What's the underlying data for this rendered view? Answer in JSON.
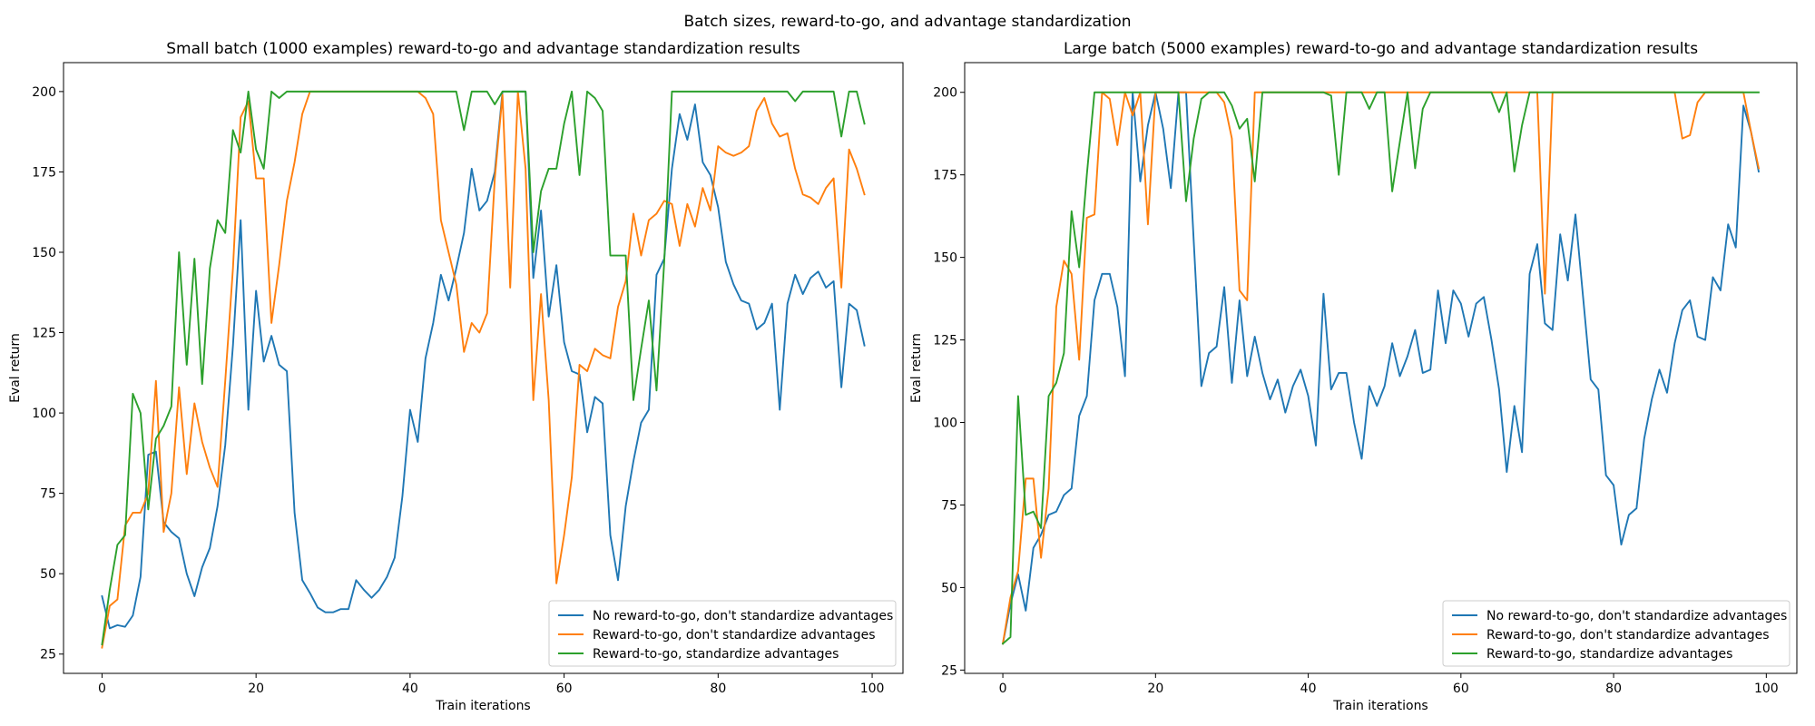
{
  "figure": {
    "suptitle": "Batch sizes, reward-to-go, and advantage standardization"
  },
  "chart_data": [
    {
      "type": "line",
      "title": "Small batch (1000 examples) reward-to-go and advantage standardization results",
      "xlabel": "Train iterations",
      "ylabel": "Eval return",
      "xlim": [
        -5,
        104
      ],
      "ylim": [
        19,
        209
      ],
      "xticks": [
        0,
        20,
        40,
        60,
        80,
        100
      ],
      "yticks": [
        25,
        50,
        75,
        100,
        125,
        150,
        175,
        200
      ],
      "grid": false,
      "legend_position": "lower-right",
      "series": [
        {
          "name": "No reward-to-go, don't standardize advantages",
          "color": "#1f77b4",
          "values": [
            43,
            33,
            34,
            33.5,
            37,
            49,
            87,
            88,
            66,
            63,
            61,
            50,
            43,
            52,
            58,
            71,
            90,
            121,
            160,
            101,
            138,
            116,
            124,
            115,
            113,
            69,
            48,
            44,
            39.5,
            38,
            38,
            39,
            39,
            48,
            45,
            42.5,
            45,
            49,
            55,
            74,
            101,
            91,
            117,
            128,
            143,
            135,
            145,
            156,
            176,
            163,
            166,
            175,
            200,
            200,
            200,
            200,
            142,
            163,
            130,
            146,
            122,
            113,
            112,
            94,
            105,
            103,
            62,
            48,
            71,
            85,
            97,
            101,
            143,
            148,
            176,
            193,
            185,
            196,
            178,
            174,
            164,
            147,
            140,
            135,
            134,
            126,
            128,
            134,
            101,
            134,
            143,
            137,
            142,
            144,
            139,
            141,
            108,
            134,
            132,
            121
          ]
        },
        {
          "name": "Reward-to-go, don't standardize advantages",
          "color": "#ff7f0e",
          "values": [
            27,
            40,
            42,
            65,
            69,
            69,
            75,
            110,
            63,
            75,
            108,
            81,
            103,
            91,
            83,
            77,
            110,
            145,
            192,
            197,
            173,
            173,
            128,
            146,
            166,
            178,
            193,
            200,
            200,
            200,
            200,
            200,
            200,
            200,
            200,
            200,
            200,
            200,
            200,
            200,
            200,
            200,
            198,
            193,
            160,
            150,
            140,
            119,
            128,
            125,
            131,
            173,
            199,
            139,
            200,
            176,
            104,
            137,
            104,
            47,
            62,
            80,
            115,
            113,
            120,
            118,
            117,
            133,
            141,
            162,
            149,
            160,
            162,
            166,
            165,
            152,
            165,
            158,
            170,
            163,
            183,
            181,
            180,
            181,
            183,
            194,
            198,
            190,
            186,
            187,
            176,
            168,
            167,
            165,
            170,
            173,
            139,
            182,
            176,
            168
          ]
        },
        {
          "name": "Reward-to-go, standardize advantages",
          "color": "#2ca02c",
          "values": [
            28,
            45,
            59,
            62,
            106,
            100,
            70,
            92,
            96,
            102,
            150,
            115,
            148,
            109,
            145,
            160,
            156,
            188,
            181,
            200,
            182,
            176,
            200,
            198,
            200,
            200,
            200,
            200,
            200,
            200,
            200,
            200,
            200,
            200,
            200,
            200,
            200,
            200,
            200,
            200,
            200,
            200,
            200,
            200,
            200,
            200,
            200,
            188,
            200,
            200,
            200,
            196,
            200,
            200,
            200,
            200,
            150,
            169,
            176,
            176,
            190,
            200,
            174,
            200,
            198,
            194,
            149,
            149,
            149,
            104,
            120,
            135,
            107,
            147,
            200,
            200,
            200,
            200,
            200,
            200,
            200,
            200,
            200,
            200,
            200,
            200,
            200,
            200,
            200,
            200,
            197,
            200,
            200,
            200,
            200,
            200,
            186,
            200,
            200,
            190
          ]
        }
      ]
    },
    {
      "type": "line",
      "title": "Large batch (5000 examples) reward-to-go and advantage standardization results",
      "xlabel": "Train iterations",
      "ylabel": "Eval return",
      "xlim": [
        -5,
        104
      ],
      "ylim": [
        24,
        209
      ],
      "xticks": [
        0,
        20,
        40,
        60,
        80,
        100
      ],
      "yticks": [
        25,
        50,
        75,
        100,
        125,
        150,
        175,
        200
      ],
      "grid": false,
      "legend_position": "lower-right",
      "series": [
        {
          "name": "No reward-to-go, don't standardize advantages",
          "color": "#1f77b4",
          "values": [
            33,
            45,
            54,
            43,
            62,
            66,
            72,
            73,
            78,
            80,
            102,
            108,
            137,
            145,
            145,
            135,
            114,
            200,
            173,
            190,
            200,
            189,
            171,
            200,
            200,
            155,
            111,
            121,
            123,
            141,
            112,
            137,
            114,
            126,
            115,
            107,
            113,
            103,
            111,
            116,
            108,
            93,
            139,
            110,
            115,
            115,
            100,
            89,
            111,
            105,
            111,
            124,
            114,
            120,
            128,
            115,
            116,
            140,
            124,
            140,
            136,
            126,
            136,
            138,
            125,
            110,
            85,
            105,
            91,
            145,
            154,
            130,
            128,
            157,
            143,
            163,
            138,
            113,
            110,
            84,
            81,
            63,
            72,
            74,
            95,
            107,
            116,
            109,
            124,
            134,
            137,
            126,
            125,
            144,
            140,
            160,
            153,
            196,
            188,
            176
          ]
        },
        {
          "name": "Reward-to-go, don't standardize advantages",
          "color": "#ff7f0e",
          "values": [
            33,
            47,
            55,
            83,
            83,
            59,
            80,
            135,
            149,
            145,
            119,
            162,
            163,
            200,
            198,
            184,
            200,
            193,
            200,
            160,
            200,
            200,
            200,
            200,
            200,
            200,
            200,
            200,
            200,
            197,
            186,
            140,
            137,
            200,
            200,
            200,
            200,
            200,
            200,
            200,
            200,
            200,
            200,
            200,
            200,
            200,
            200,
            200,
            200,
            200,
            200,
            200,
            200,
            200,
            200,
            200,
            200,
            200,
            200,
            200,
            200,
            200,
            200,
            200,
            200,
            200,
            200,
            200,
            200,
            200,
            200,
            139,
            200,
            200,
            200,
            200,
            200,
            200,
            200,
            200,
            200,
            200,
            200,
            200,
            200,
            200,
            200,
            200,
            200,
            186,
            187,
            197,
            200,
            200,
            200,
            200,
            200,
            200,
            188,
            177
          ]
        },
        {
          "name": "Reward-to-go, standardize advantages",
          "color": "#2ca02c",
          "values": [
            33,
            35,
            108,
            72,
            73,
            68,
            108,
            112,
            121,
            164,
            147,
            175,
            200,
            200,
            200,
            200,
            200,
            200,
            200,
            200,
            200,
            200,
            200,
            200,
            167,
            186,
            198,
            200,
            200,
            200,
            196,
            189,
            192,
            173,
            200,
            200,
            200,
            200,
            200,
            200,
            200,
            200,
            200,
            199,
            175,
            200,
            200,
            200,
            195,
            200,
            200,
            170,
            185,
            200,
            177,
            195,
            200,
            200,
            200,
            200,
            200,
            200,
            200,
            200,
            200,
            194,
            200,
            176,
            190,
            200,
            200,
            200,
            200,
            200,
            200,
            200,
            200,
            200,
            200,
            200,
            200,
            200,
            200,
            200,
            200,
            200,
            200,
            200,
            200,
            200,
            200,
            200,
            200,
            200,
            200,
            200,
            200,
            200,
            200,
            200
          ]
        }
      ]
    }
  ]
}
